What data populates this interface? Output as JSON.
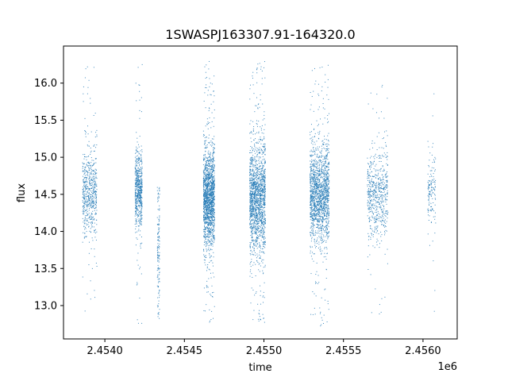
{
  "chart_data": {
    "type": "scatter",
    "title": "1SWASPJ163307.91-164320.0",
    "xlabel": "time",
    "ylabel": "flux",
    "x_offset_label": "1e6",
    "x_scale": 1000000,
    "xlim": [
      2453740,
      2456215
    ],
    "ylim": [
      12.55,
      16.5
    ],
    "x_ticks": [
      2454000,
      2454500,
      2455000,
      2455500,
      2456000
    ],
    "x_tick_labels": [
      "2.4540",
      "2.4545",
      "2.4550",
      "2.4555",
      "2.4560"
    ],
    "y_ticks": [
      13.0,
      13.5,
      14.0,
      14.5,
      15.0,
      15.5,
      16.0
    ],
    "y_tick_labels": [
      "13.0",
      "13.5",
      "14.0",
      "14.5",
      "15.0",
      "15.5",
      "16.0"
    ],
    "grid": false,
    "marker_color": "#1f77b4",
    "series": [
      {
        "observing_seasons": [
          {
            "start": 2453860,
            "end": 2453950,
            "center_flux": 14.5,
            "spread": 0.28,
            "min": 12.8,
            "max": 16.3,
            "density": "medium"
          },
          {
            "start": 2454190,
            "end": 2454235,
            "center_flux": 14.55,
            "spread": 0.25,
            "min": 12.75,
            "max": 16.3,
            "density": "medium"
          },
          {
            "start": 2454330,
            "end": 2454345,
            "center_flux": 13.8,
            "spread": 0.4,
            "min": 12.8,
            "max": 14.6,
            "density": "sparse"
          },
          {
            "start": 2454620,
            "end": 2454690,
            "center_flux": 14.45,
            "spread": 0.3,
            "min": 12.75,
            "max": 16.3,
            "density": "dense"
          },
          {
            "start": 2454910,
            "end": 2455010,
            "center_flux": 14.45,
            "spread": 0.35,
            "min": 12.75,
            "max": 16.3,
            "density": "dense"
          },
          {
            "start": 2455290,
            "end": 2455410,
            "center_flux": 14.5,
            "spread": 0.3,
            "min": 12.7,
            "max": 16.25,
            "density": "dense"
          },
          {
            "start": 2455650,
            "end": 2455780,
            "center_flux": 14.5,
            "spread": 0.28,
            "min": 12.85,
            "max": 16.05,
            "density": "medium"
          },
          {
            "start": 2456030,
            "end": 2456080,
            "center_flux": 14.5,
            "spread": 0.25,
            "min": 12.8,
            "max": 16.15,
            "density": "sparse"
          }
        ]
      }
    ]
  }
}
